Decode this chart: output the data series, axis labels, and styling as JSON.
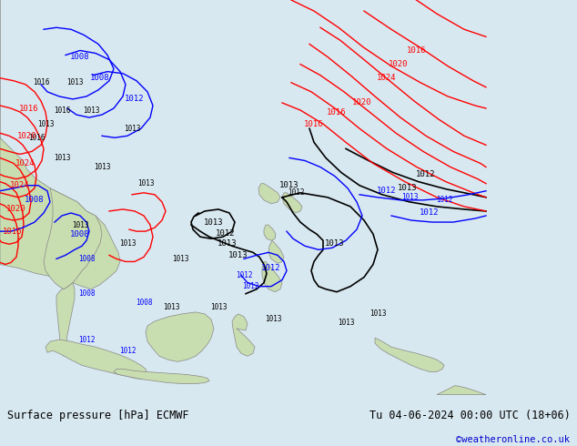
{
  "title_left": "Surface pressure [hPa] ECMWF",
  "title_right": "Tu 04-06-2024 00:00 UTC (18+06)",
  "copyright": "©weatheronline.co.uk",
  "ocean_color": "#d8e8f0",
  "land_color": "#c8ddb0",
  "land_edge": "#888888",
  "bottom_bar_color": "#e0e0e0",
  "text_color": "#000000",
  "copyright_color": "#0000cc",
  "figsize": [
    6.34,
    4.9
  ],
  "dpi": 100
}
